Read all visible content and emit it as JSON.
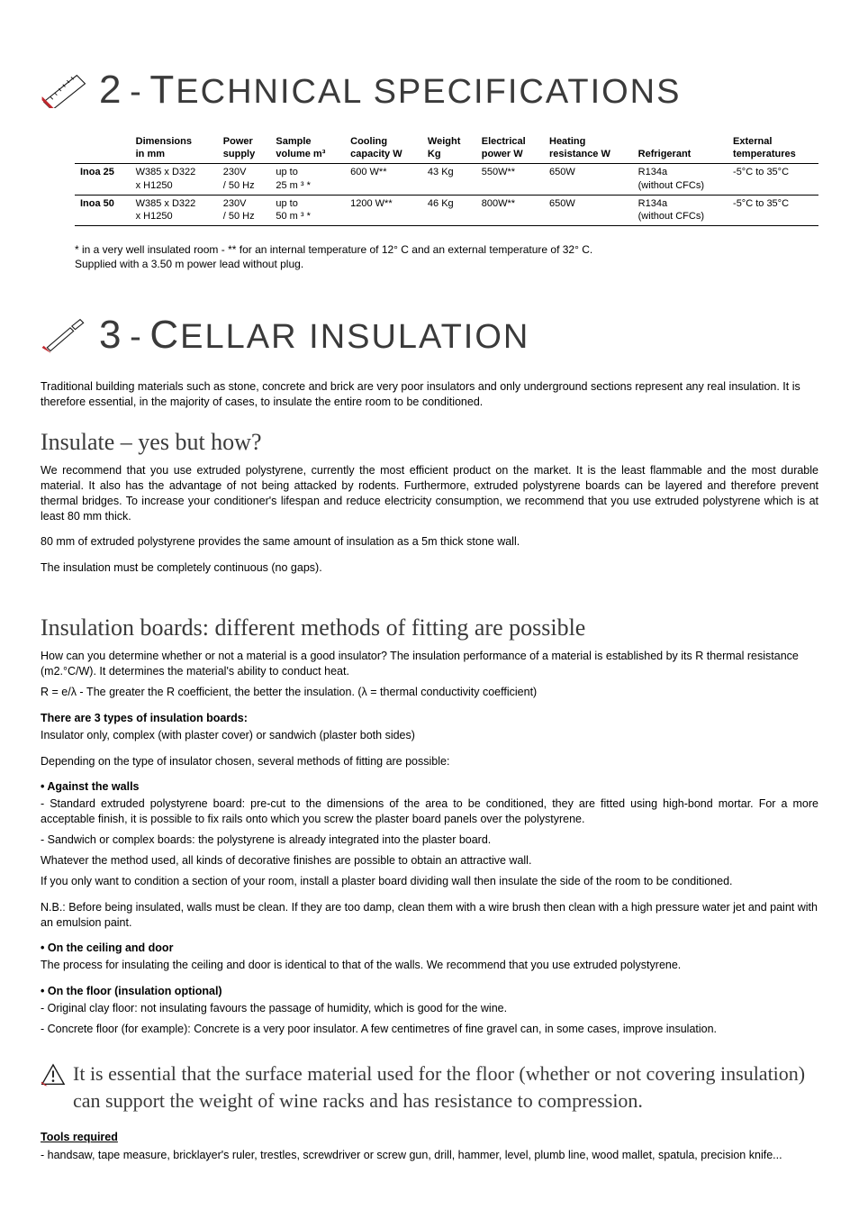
{
  "section2": {
    "number": "2",
    "dash": "-",
    "title_first": "T",
    "title_rest": "ECHNICAL SPECIFICATIONS"
  },
  "spec_table": {
    "headers": [
      "",
      "Dimensions\nin mm",
      "Power\nsupply",
      "Sample\nvolume m³",
      "Cooling\ncapacity W",
      "Weight\nKg",
      "Electrical\npower W",
      "Heating\nresistance W",
      "Refrigerant",
      "External\ntemperatures"
    ],
    "rows": [
      {
        "label": "Inoa 25",
        "cells": [
          "W385 x D322\nx H1250",
          "230V\n/ 50 Hz",
          "up to\n25 m ³ *",
          "600 W**",
          "43 Kg",
          "550W**",
          "650W",
          "R134a\n(without CFCs)",
          "-5°C to 35°C"
        ]
      },
      {
        "label": "Inoa 50",
        "cells": [
          "W385 x D322\nx H1250",
          "230V\n/ 50 Hz",
          "up to\n50 m ³ *",
          "1200 W**",
          "46 Kg",
          "800W**",
          "650W",
          "R134a\n(without CFCs)",
          "-5°C to 35°C"
        ]
      }
    ]
  },
  "footnote": {
    "line1": "* in a very well insulated room - ** for an internal temperature of 12° C and an external temperature of 32° C.",
    "line2": "Supplied with a 3.50 m power lead without plug."
  },
  "section3": {
    "number": "3",
    "dash": "-",
    "title_first": "C",
    "title_rest": "ELLAR INSULATION"
  },
  "intro": "Traditional building materials such as stone, concrete and brick are very poor insulators and only underground sections represent any real insulation. It is therefore essential, in the majority of cases, to insulate the entire room to be conditioned.",
  "insulate_heading": "Insulate – yes but how?",
  "insulate_p1": "We recommend that you use extruded polystyrene, currently the most efficient product on the market. It is the least flammable and the most durable material. It also has the advantage of not being attacked by rodents. Furthermore, extruded polystyrene boards can be layered and therefore prevent thermal bridges. To increase your conditioner's lifespan and reduce electricity consumption, we recommend that you use extruded polystyrene which is at least 80 mm thick.",
  "insulate_p2": "80 mm of extruded polystyrene provides the same amount of insulation as a 5m thick stone wall.",
  "insulate_p3": "The insulation must be completely continuous (no gaps).",
  "boards_heading": "Insulation boards: different methods of fitting are possible",
  "boards_p1": "How can you determine whether or not a material is a good insulator?  The insulation performance of a material is established by its R thermal resistance (m2.°C/W). It determines the material's ability to conduct heat.",
  "boards_p1b": "R = e/λ - The greater the R coefficient, the better the insulation. (λ = thermal conductivity coefficient)",
  "boards_types_title": "There are 3 types of insulation boards:",
  "boards_types_text": "Insulator only, complex (with plaster cover) or sandwich (plaster both sides)",
  "boards_depending": "Depending on the type of insulator chosen, several methods of fitting are possible:",
  "walls_title": "• Against the walls",
  "walls_l1": "- Standard extruded polystyrene board: pre-cut to the dimensions of the area to be conditioned, they are fitted using high-bond mortar. For a more acceptable finish, it is possible to fix rails onto which you screw the plaster board panels over the polystyrene.",
  "walls_l2": "- Sandwich or complex boards: the polystyrene is already integrated into the plaster board.",
  "walls_l3": "Whatever the method used, all kinds of decorative finishes are possible to obtain an attractive wall.",
  "walls_l4": "If you only want to condition a section of your room, install a plaster board dividing wall then insulate the side of the room to be conditioned.",
  "walls_nb": "N.B.: Before being insulated, walls must be clean. If they are too damp, clean them with a wire brush then clean with a high pressure water jet and paint with an emulsion paint.",
  "ceiling_title": "•  On the ceiling and door",
  "ceiling_text": "The process for insulating the ceiling and door is identical to that of the walls. We recommend that you use extruded polystyrene.",
  "floor_title": "•  On the floor (insulation optional)",
  "floor_l1": "- Original clay floor: not insulating favours the passage of humidity, which is good for the wine.",
  "floor_l2": "- Concrete floor (for example): Concrete is a very poor insulator. A few centimetres of fine gravel can, in some cases, improve insulation.",
  "callout_text": "It is essential that the surface material used for the floor (whether or not covering insulation) can support the weight of wine racks and has resistance to compression.",
  "tools_title": "Tools required",
  "tools_text": "- handsaw, tape measure, bricklayer's ruler, trestles, screwdriver or screw gun, drill, hammer, level, plumb line, wood mallet, spatula, precision knife...",
  "colors": {
    "icon_accent": "#c1272d",
    "icon_outline": "#1a1a1a",
    "text_heading": "#3a3a3a"
  }
}
